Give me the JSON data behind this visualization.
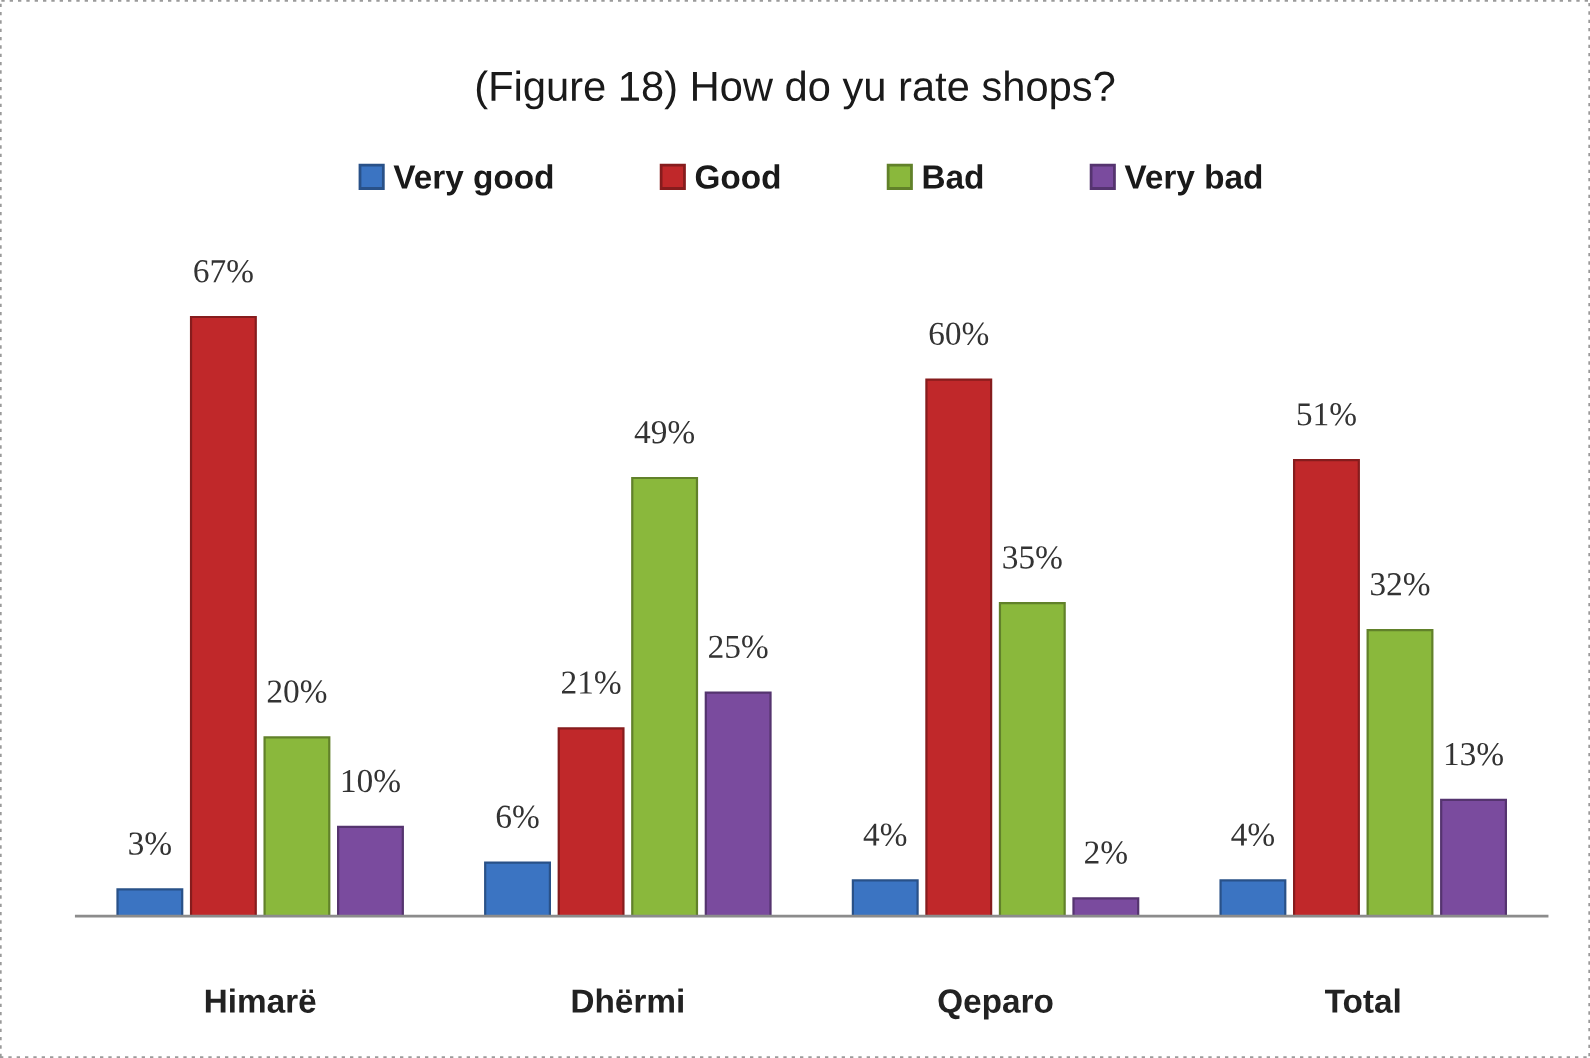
{
  "chart_data": {
    "type": "bar",
    "title": "(Figure 18) How do yu rate shops?",
    "categories": [
      "Himarë",
      "Dhërmi",
      "Qeparo",
      "Total"
    ],
    "series": [
      {
        "name": "Very good",
        "color": "#3b74c2",
        "values": [
          3,
          6,
          4,
          4
        ],
        "value_labels": [
          "3%",
          "6%",
          "4%",
          "4%"
        ]
      },
      {
        "name": "Good",
        "color": "#c0282a",
        "values": [
          67,
          21,
          60,
          51
        ],
        "value_labels": [
          "67%",
          "21%",
          "60%",
          "51%"
        ]
      },
      {
        "name": "Bad",
        "color": "#8ab83c",
        "values": [
          20,
          49,
          35,
          32
        ],
        "value_labels": [
          "20%",
          "49%",
          "35%",
          "32%"
        ]
      },
      {
        "name": "Very bad",
        "color": "#7a4b9e",
        "values": [
          10,
          25,
          2,
          13
        ],
        "value_labels": [
          "10%",
          "25%",
          "2%",
          "13%"
        ]
      }
    ],
    "legend": "top",
    "grid": false,
    "tick_labels": "x"
  }
}
